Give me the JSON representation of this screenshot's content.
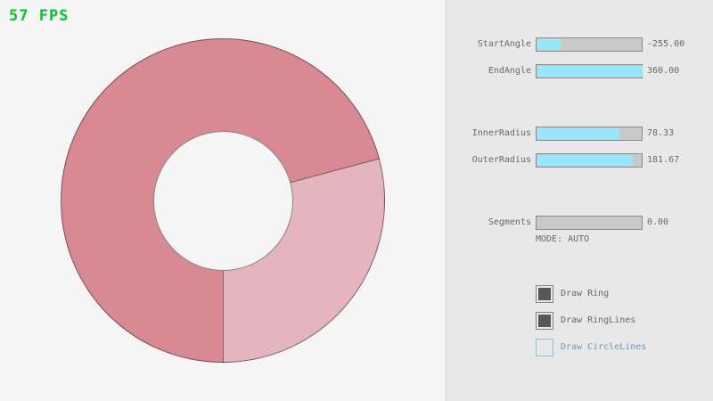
{
  "fps_label": "57 FPS",
  "panel": {
    "sliders": [
      {
        "label": "StartAngle",
        "value": "-255.00",
        "fill_pct": 22
      },
      {
        "label": "EndAngle",
        "value": "360.00",
        "fill_pct": 100
      },
      {
        "label": "InnerRadius",
        "value": "78.33",
        "fill_pct": 78
      },
      {
        "label": "OuterRadius",
        "value": "181.67",
        "fill_pct": 91
      },
      {
        "label": "Segments",
        "value": "0.00",
        "fill_pct": 0
      }
    ],
    "mode_text": "MODE: AUTO",
    "checkboxes": [
      {
        "label": "Draw Ring",
        "checked": true
      },
      {
        "label": "Draw RingLines",
        "checked": true
      },
      {
        "label": "Draw CircleLines",
        "checked": false
      }
    ]
  },
  "ring": {
    "color_dark": "#D98994",
    "color_light": "#E4B5BC",
    "outline": "rgba(0,0,0,0.45)",
    "light_sector": {
      "from_deg": 75,
      "to_deg": 180
    }
  },
  "colors": {
    "fps_green": "#00C82E",
    "slider_fill": "#97E8FF",
    "panel_bg": "#E8E8E8",
    "canvas_bg": "#F5F5F5",
    "accent_blue": "#6C9BBC"
  }
}
